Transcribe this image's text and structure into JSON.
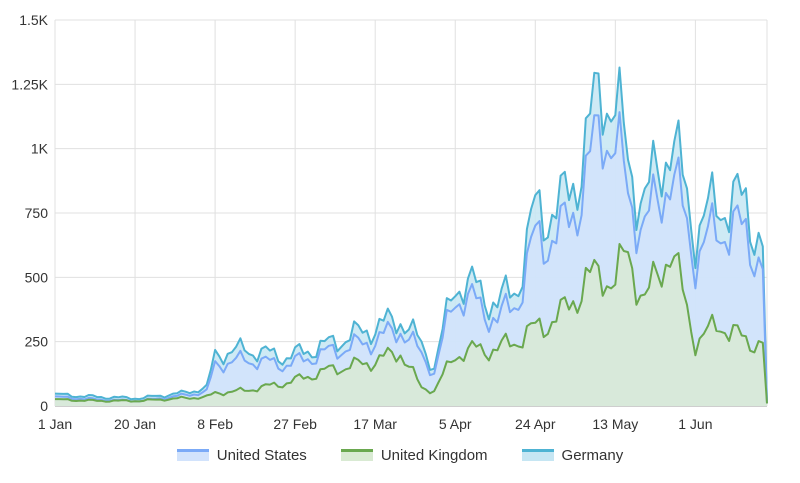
{
  "chart_data": {
    "type": "area",
    "x_tick_labels": [
      "1 Jan",
      "20 Jan",
      "8 Feb",
      "27 Feb",
      "17 Mar",
      "5 Apr",
      "24 Apr",
      "13 May",
      "1 Jun"
    ],
    "x_tick_days": [
      0,
      19,
      38,
      57,
      76,
      95,
      114,
      133,
      152
    ],
    "y_ticks": [
      0,
      250,
      500,
      750,
      1000,
      1250,
      1500
    ],
    "y_tick_labels": [
      "0",
      "250",
      "500",
      "750",
      "1K",
      "1.25K",
      "1.5K"
    ],
    "ylim": [
      0,
      1500
    ],
    "xlim": [
      0,
      169
    ],
    "grid": true,
    "legend_position": "bottom",
    "series": [
      {
        "name": "United States",
        "color": "#7baaf7",
        "fill": "#d2e3fc",
        "anchors": [
          [
            0,
            35
          ],
          [
            10,
            25
          ],
          [
            20,
            20
          ],
          [
            30,
            40
          ],
          [
            36,
            55
          ],
          [
            38,
            160
          ],
          [
            45,
            180
          ],
          [
            55,
            160
          ],
          [
            65,
            210
          ],
          [
            75,
            250
          ],
          [
            82,
            300
          ],
          [
            87,
            200
          ],
          [
            90,
            130
          ],
          [
            95,
            430
          ],
          [
            100,
            400
          ],
          [
            105,
            330
          ],
          [
            110,
            420
          ],
          [
            114,
            650
          ],
          [
            120,
            660
          ],
          [
            126,
            870
          ],
          [
            130,
            1120
          ],
          [
            133,
            1000
          ],
          [
            136,
            830
          ],
          [
            140,
            680
          ],
          [
            146,
            920
          ],
          [
            152,
            580
          ],
          [
            158,
            700
          ],
          [
            164,
            670
          ],
          [
            168,
            540
          ],
          [
            169,
            10
          ]
        ]
      },
      {
        "name": "United Kingdom",
        "color": "#6aa84f",
        "fill": "#d9ead3",
        "anchors": [
          [
            0,
            25
          ],
          [
            10,
            20
          ],
          [
            20,
            20
          ],
          [
            30,
            30
          ],
          [
            36,
            35
          ],
          [
            38,
            50
          ],
          [
            45,
            60
          ],
          [
            55,
            90
          ],
          [
            65,
            140
          ],
          [
            75,
            170
          ],
          [
            82,
            210
          ],
          [
            87,
            70
          ],
          [
            90,
            60
          ],
          [
            95,
            200
          ],
          [
            100,
            220
          ],
          [
            105,
            220
          ],
          [
            110,
            260
          ],
          [
            114,
            300
          ],
          [
            120,
            350
          ],
          [
            126,
            480
          ],
          [
            130,
            520
          ],
          [
            133,
            480
          ],
          [
            136,
            600
          ],
          [
            140,
            400
          ],
          [
            146,
            620
          ],
          [
            152,
            250
          ],
          [
            158,
            320
          ],
          [
            164,
            250
          ],
          [
            168,
            250
          ],
          [
            169,
            10
          ]
        ]
      },
      {
        "name": "Germany",
        "color": "#4eb3d3",
        "fill": "#c6e6f3",
        "anchors": [
          [
            0,
            45
          ],
          [
            10,
            35
          ],
          [
            20,
            30
          ],
          [
            30,
            50
          ],
          [
            36,
            70
          ],
          [
            38,
            200
          ],
          [
            45,
            220
          ],
          [
            55,
            190
          ],
          [
            65,
            240
          ],
          [
            75,
            300
          ],
          [
            82,
            340
          ],
          [
            87,
            240
          ],
          [
            90,
            150
          ],
          [
            95,
            480
          ],
          [
            100,
            460
          ],
          [
            105,
            390
          ],
          [
            110,
            480
          ],
          [
            114,
            760
          ],
          [
            120,
            760
          ],
          [
            126,
            1000
          ],
          [
            130,
            1280
          ],
          [
            133,
            1150
          ],
          [
            136,
            960
          ],
          [
            140,
            780
          ],
          [
            146,
            1050
          ],
          [
            152,
            680
          ],
          [
            158,
            800
          ],
          [
            164,
            780
          ],
          [
            168,
            630
          ],
          [
            169,
            10
          ]
        ]
      }
    ]
  }
}
